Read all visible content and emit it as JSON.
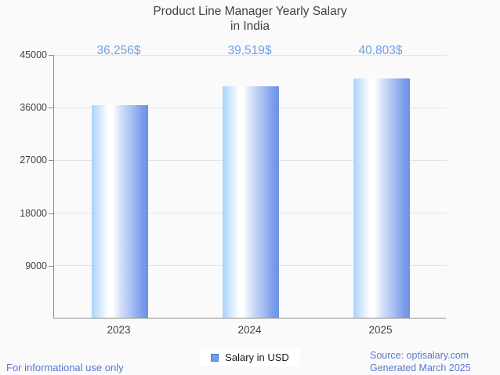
{
  "title": {
    "line1": "Product Line Manager Yearly Salary",
    "line2": "in India"
  },
  "chart_data": {
    "type": "bar",
    "title": "Product Line Manager Yearly Salary in India",
    "categories": [
      "2023",
      "2024",
      "2025"
    ],
    "values": [
      36256,
      39519,
      40803
    ],
    "value_labels": [
      "36,256$",
      "39,519$",
      "40,803$"
    ],
    "series_name": "Salary in USD",
    "xlabel": "",
    "ylabel": "",
    "ylim": [
      0,
      45000
    ],
    "yticks": [
      45000,
      36000,
      27000,
      18000,
      9000
    ],
    "grid": true,
    "legend_position": "bottom-center"
  },
  "legend": {
    "label": "Salary in USD"
  },
  "footer": {
    "left_note": "For informational use only",
    "source": "Source: optisalary.com",
    "generated": "Generated March 2025"
  },
  "colors": {
    "background": "#fafafa",
    "title_text": "#424242",
    "axis_text": "#424242",
    "value_label_blue": "#6d9eeb",
    "footer_blue": "#5878cf",
    "gridline": "#e3e3e3",
    "axis_line": "#8c8c8c",
    "bar_gradient_left": "#a7d3fb",
    "bar_gradient_mid": "#ffffff",
    "bar_gradient_right": "#6a92e7",
    "legend_swatch_fill": "#6d9eeb",
    "legend_swatch_border": "#4b7bd1"
  }
}
